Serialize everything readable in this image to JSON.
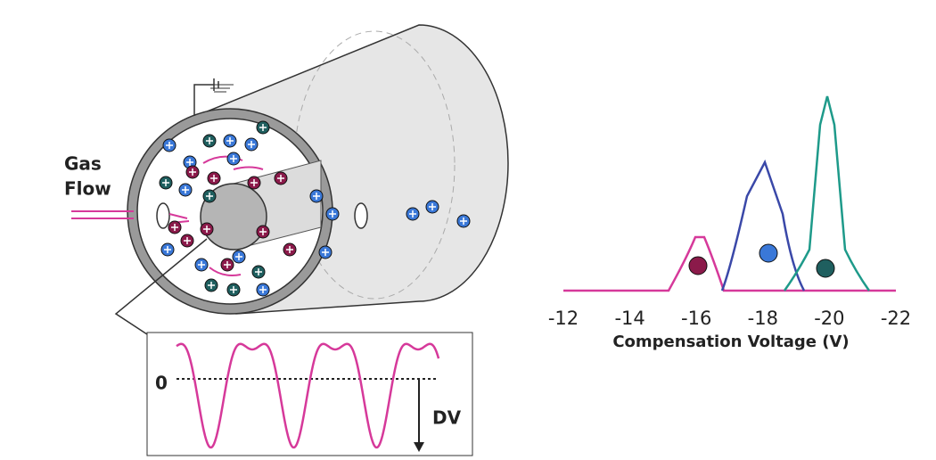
{
  "labels": {
    "gas": "Gas",
    "flow": "Flow",
    "zero": "0",
    "dv": "DV"
  },
  "chart_data": {
    "type": "line",
    "xlabel": "Compensation Voltage (V)",
    "xlim": [
      -12,
      -22
    ],
    "xticks": [
      -12,
      -14,
      -16,
      -18,
      -20,
      -22
    ]
  }
}
